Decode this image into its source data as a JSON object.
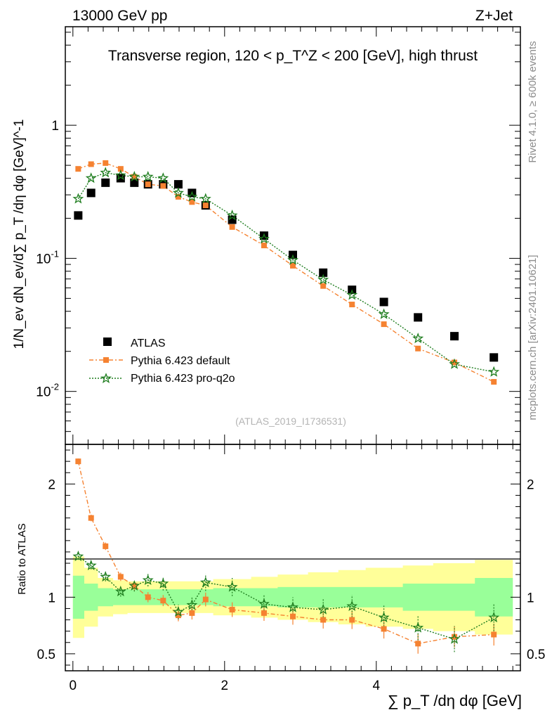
{
  "header": {
    "energy_label": "13000 GeV pp",
    "process_label": "Z+Jet",
    "plot_title": "Transverse region, 120 < p_T^Z < 200 [GeV], high thrust",
    "watermark": "(ATLAS_2019_I1736531)"
  },
  "side_labels": {
    "rivet_version": "Rivet 4.1.0, ≥ 600k events",
    "source": "mcplots.cern.ch [arXiv:2401.10621]"
  },
  "axes": {
    "main_ylabel": "1/N_ev dN_ev/d∑ p_T /dη dφ  [GeV]^-1",
    "ratio_ylabel": "Ratio to ATLAS",
    "xlabel": "∑ p_T /dη dφ [GeV]",
    "main_yticks": [
      "1",
      "10^-1",
      "10^-2"
    ],
    "ratio_yticks": [
      "2",
      "1",
      "0.5"
    ],
    "xticks": [
      "0",
      "2",
      "4"
    ]
  },
  "legend": {
    "items": [
      {
        "label": "ATLAS"
      },
      {
        "label": "Pythia 6.423 default"
      },
      {
        "label": "Pythia 6.423 pro-q2o"
      }
    ]
  },
  "colors": {
    "atlas": "#000000",
    "default": "#f58231",
    "proq2o": "#1e7d1e",
    "band_inner": "#99ff99",
    "band_outer": "#ffff99"
  },
  "chart_data": {
    "type": "scatter",
    "title": "Transverse region, 120 < p_T^Z < 200 [GeV], high thrust",
    "xlabel": "∑ p_T /dη dφ [GeV]",
    "ylabel": "1/N_ev dN_ev/d∑ p_T /dη dφ [GeV]^-1",
    "xlim": [
      -0.1,
      5.9
    ],
    "ylim_log": [
      0.004,
      5.5
    ],
    "ratio_ylim": [
      0.35,
      2.35
    ],
    "x": [
      0.07,
      0.24,
      0.43,
      0.63,
      0.81,
      0.99,
      1.19,
      1.39,
      1.57,
      1.75,
      2.1,
      2.52,
      2.9,
      3.3,
      3.68,
      4.1,
      4.55,
      5.03,
      5.55
    ],
    "bin_edges": [
      0,
      0.15,
      0.33,
      0.53,
      0.72,
      0.9,
      1.09,
      1.29,
      1.48,
      1.66,
      1.85,
      2.35,
      2.7,
      3.1,
      3.5,
      3.86,
      4.35,
      4.75,
      5.3,
      5.8
    ],
    "series": [
      {
        "name": "ATLAS",
        "marker": "square",
        "values": [
          0.21,
          0.31,
          0.37,
          0.4,
          0.37,
          0.36,
          0.36,
          0.36,
          0.31,
          0.25,
          0.195,
          0.148,
          0.106,
          0.078,
          0.058,
          0.047,
          0.036,
          0.026,
          0.018
        ]
      },
      {
        "name": "Pythia 6.423 default",
        "marker": "filled-square",
        "values": [
          0.47,
          0.51,
          0.52,
          0.47,
          0.41,
          0.36,
          0.35,
          0.29,
          0.265,
          0.25,
          0.172,
          0.125,
          0.088,
          0.062,
          0.045,
          0.032,
          0.021,
          0.0165,
          0.0118
        ],
        "ratio": [
          2.2,
          1.7,
          1.45,
          1.18,
          1.1,
          1.0,
          0.97,
          0.84,
          0.86,
          0.98,
          0.89,
          0.86,
          0.83,
          0.8,
          0.8,
          0.72,
          0.59,
          0.65,
          0.67
        ]
      },
      {
        "name": "Pythia 6.423 pro-q2o",
        "marker": "open-star",
        "values": [
          0.28,
          0.4,
          0.44,
          0.42,
          0.41,
          0.41,
          0.4,
          0.31,
          0.29,
          0.28,
          0.21,
          0.14,
          0.097,
          0.069,
          0.053,
          0.038,
          0.025,
          0.016,
          0.014
        ],
        "ratio": [
          1.36,
          1.28,
          1.18,
          1.05,
          1.1,
          1.15,
          1.12,
          0.87,
          0.93,
          1.13,
          1.09,
          0.94,
          0.91,
          0.89,
          0.92,
          0.82,
          0.73,
          0.63,
          0.82
        ]
      }
    ],
    "ratio_band_inner": [
      0.19,
      0.12,
      0.08,
      0.07,
      0.07,
      0.07,
      0.07,
      0.07,
      0.07,
      0.07,
      0.08,
      0.08,
      0.09,
      0.09,
      0.09,
      0.09,
      0.12,
      0.12,
      0.17,
      0.17
    ],
    "ratio_band_outer": [
      0.36,
      0.26,
      0.17,
      0.15,
      0.14,
      0.14,
      0.14,
      0.14,
      0.14,
      0.14,
      0.16,
      0.18,
      0.2,
      0.22,
      0.24,
      0.26,
      0.28,
      0.3,
      0.33,
      0.35
    ]
  }
}
